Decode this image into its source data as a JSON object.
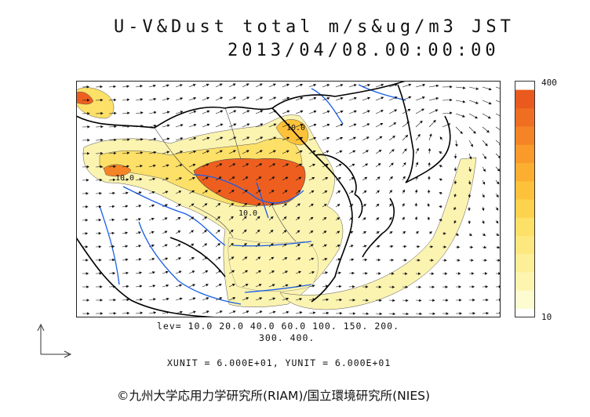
{
  "header": {
    "title": "U-V&Dust total m/s&ug/m3 JST",
    "datetime": "2013/04/08.00:00:00"
  },
  "colorbar": {
    "max_label": "400",
    "min_label": "10",
    "colors": [
      "#fdfbd0",
      "#fdf4b0",
      "#fdee98",
      "#fde880",
      "#fde068",
      "#fdd24c",
      "#fdc23a",
      "#fbae30",
      "#f99a2a",
      "#f58426",
      "#f06e22",
      "#ea5a1e"
    ]
  },
  "map": {
    "contour_labels": [
      "10.0",
      "10.0",
      "10.0"
    ],
    "colors": {
      "land": "#ffffff",
      "coast": "#000000",
      "rivers": "#1a5ee6",
      "dust_low": "#fbf3b0",
      "dust_high": "#ee5f1f"
    }
  },
  "levels": {
    "line1": "lev= 10.0 20.0 40.0 60.0 100. 150. 200.",
    "line2": "300. 400."
  },
  "units": "XUNIT = 6.000E+01, YUNIT = 6.000E+01",
  "copyright": "©九州大学応用力学研究所(RIAM)/国立環境研究所(NIES)"
}
